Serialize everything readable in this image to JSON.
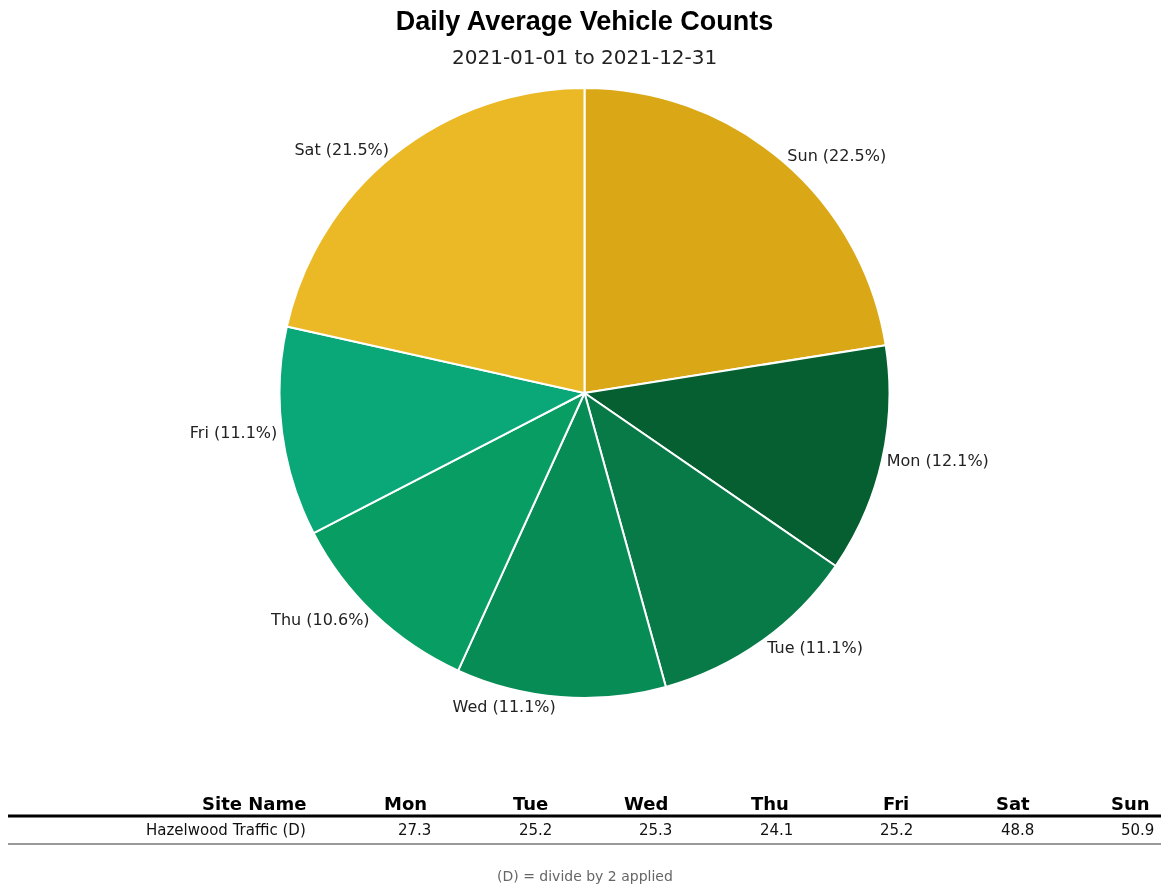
{
  "chart_data": [
    {
      "type": "pie",
      "title": "Daily Average Vehicle Counts",
      "subtitle": "2021-01-01 to 2021-12-31",
      "categories": [
        "Sun (22.5%)",
        "Mon (12.1%)",
        "Tue (11.1%)",
        "Wed (11.1%)",
        "Thu (10.6%)",
        "Fri (11.1%)",
        "Sat (21.5%)"
      ],
      "values": [
        22.5,
        12.1,
        11.1,
        11.1,
        10.6,
        11.1,
        21.5
      ],
      "colors": [
        "#daa816",
        "#065f30",
        "#087a48",
        "#078c56",
        "#089d63",
        "#0aa878",
        "#ebb926"
      ]
    },
    {
      "type": "other",
      "categories": [
        "Mon",
        "Tue",
        "Wed",
        "Thu",
        "Fri",
        "Sat",
        "Sun"
      ],
      "series": [
        {
          "name": "Hazelwood Traffic (D)",
          "values": [
            27.3,
            25.2,
            25.3,
            24.1,
            25.2,
            48.8,
            50.9
          ]
        }
      ],
      "data_labels": true,
      "annotations": [
        "Site Name",
        "(D) = divide by 2 applied"
      ]
    }
  ]
}
